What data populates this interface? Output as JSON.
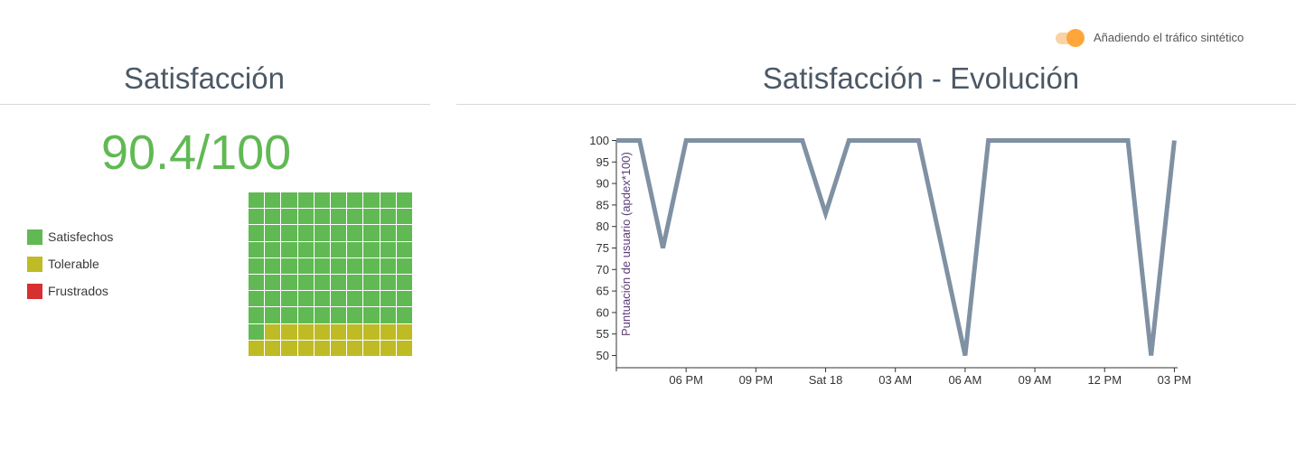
{
  "toggle": {
    "label": "Añadiendo el tráfico sintético",
    "on": true,
    "color": "#ffa63a"
  },
  "left_panel": {
    "title": "Satisfacción",
    "score": "90.4/100",
    "score_color": "#61b954",
    "legend": [
      {
        "label": "Satisfechos",
        "color": "#61b954"
      },
      {
        "label": "Tolerable",
        "color": "#bfbb25"
      },
      {
        "label": "Frustrados",
        "color": "#d63030"
      }
    ],
    "waffle": {
      "satisfied_cells": 81,
      "tolerable_cells": 19,
      "frustrated_cells": 0
    }
  },
  "right_panel": {
    "title": "Satisfacción - Evolución"
  },
  "chart_data": {
    "type": "line",
    "title": "",
    "xlabel": "",
    "ylabel": "Puntuación de usuario (apdex*100)",
    "ylim": [
      50,
      100
    ],
    "yticks": [
      100,
      95,
      90,
      85,
      80,
      75,
      70,
      65,
      60,
      55,
      50
    ],
    "xlim": [
      15,
      39.1
    ],
    "xticks": [
      {
        "label": "06 PM",
        "value": 18
      },
      {
        "label": "09 PM",
        "value": 21
      },
      {
        "label": "Sat 18",
        "value": 24
      },
      {
        "label": "03 AM",
        "value": 27
      },
      {
        "label": "06 AM",
        "value": 30
      },
      {
        "label": "09 AM",
        "value": 33
      },
      {
        "label": "12 PM",
        "value": 36
      },
      {
        "label": "03 PM",
        "value": 39
      }
    ],
    "series": [
      {
        "color": "#7f91a3",
        "x": [
          15,
          16,
          17,
          18,
          23,
          24,
          25,
          28,
          29,
          30,
          31,
          32,
          34,
          35,
          37,
          38,
          39
        ],
        "y": [
          100,
          100,
          75,
          100,
          100,
          83,
          100,
          100,
          75,
          50,
          100,
          100,
          100,
          100,
          100,
          50,
          100
        ]
      }
    ],
    "grid": false
  }
}
